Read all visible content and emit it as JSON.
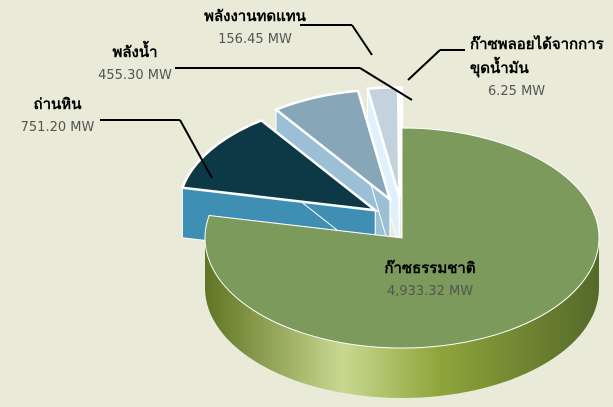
{
  "chart_data": {
    "type": "pie",
    "categories": [
      "ก๊าซธรรมชาติ",
      "ถ่านหิน",
      "พลังน้ำ",
      "พลังงานทดแทน",
      "ก๊าซพลอยได้จากการขุดน้ำมัน"
    ],
    "values": [
      4933.32,
      751.2,
      455.3,
      156.45,
      6.25
    ],
    "value_labels": [
      "4,933.32 MW",
      "751.20 MW",
      "455.30 MW",
      "156.45 MW",
      "6.25 MW"
    ],
    "colors": [
      "#7b9a5c",
      "#0d3846",
      "#87a6b8",
      "#c3d2dd",
      "#a8620e"
    ]
  }
}
